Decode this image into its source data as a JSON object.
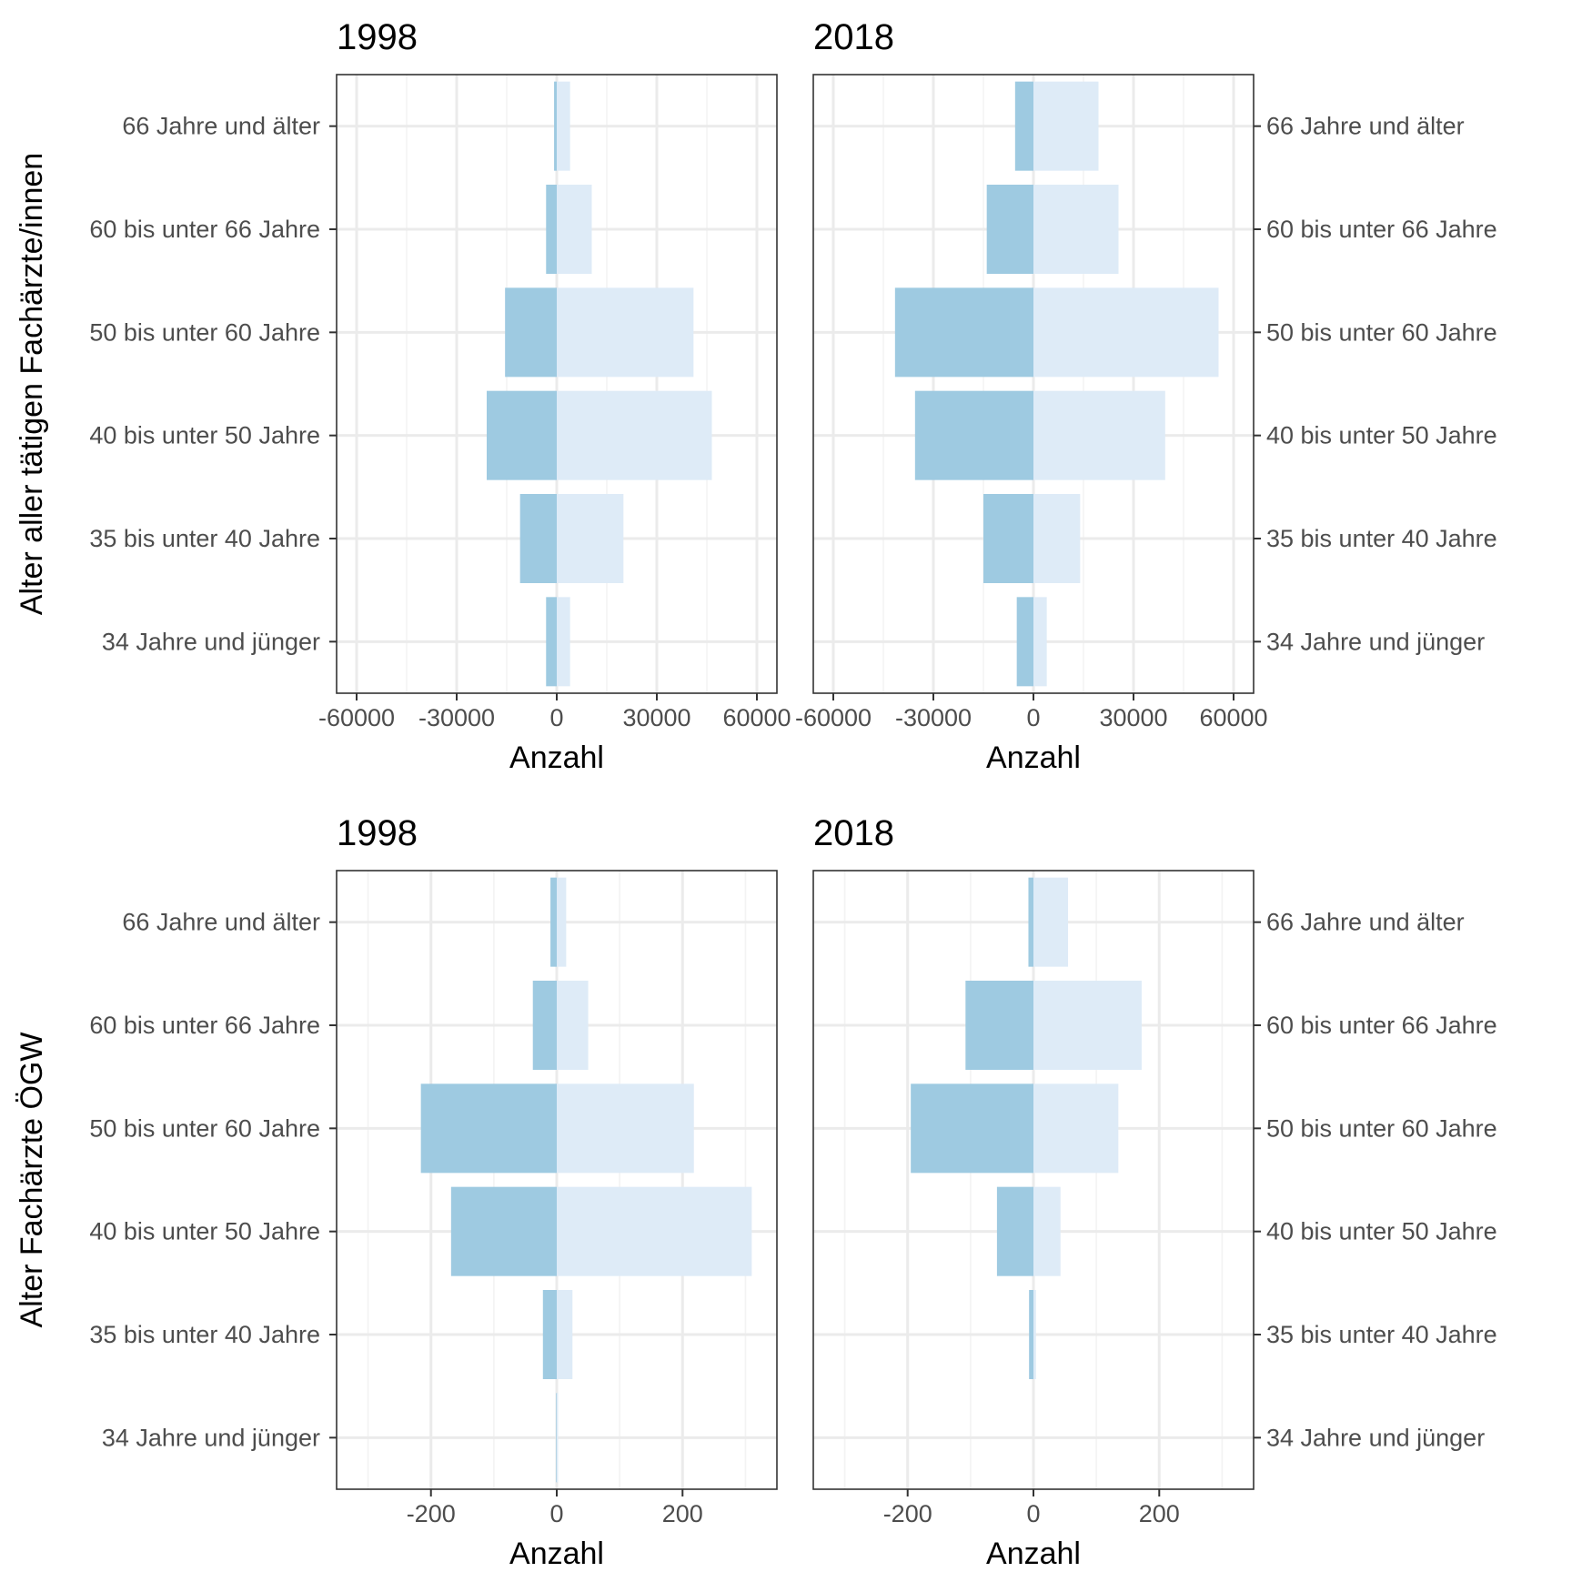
{
  "colors": {
    "female": "#9ecae1",
    "male": "#deebf7"
  },
  "chart_data": [
    {
      "type": "bar",
      "orientation": "horizontal",
      "title": "1998",
      "xlabel": "Anzahl",
      "ylabel": "Alter aller tätigen Fachärzte/innen",
      "xlim": [
        -66000,
        66000
      ],
      "xticks": [
        -60000,
        -30000,
        0,
        30000,
        60000
      ],
      "xtick_labels": [
        "-60000",
        "-30000",
        "0",
        "30000",
        "60000"
      ],
      "categories": [
        "34 Jahre und jünger",
        "35 bis unter 40 Jahre",
        "40 bis unter 50 Jahre",
        "50 bis unter 60 Jahre",
        "60 bis unter 66 Jahre",
        "66 Jahre und älter"
      ],
      "series": [
        {
          "values": [
            -3200,
            -11000,
            -21000,
            -15500,
            -3200,
            -800
          ]
        },
        {
          "values": [
            4000,
            20000,
            46500,
            41000,
            10500,
            4000
          ]
        }
      ],
      "y_axis_side": "left",
      "grid": true
    },
    {
      "type": "bar",
      "orientation": "horizontal",
      "title": "2018",
      "xlabel": "Anzahl",
      "xlim": [
        -66000,
        66000
      ],
      "xticks": [
        -60000,
        -30000,
        0,
        30000,
        60000
      ],
      "xtick_labels": [
        "-60000",
        "-30000",
        "0",
        "30000",
        "60000"
      ],
      "categories": [
        "34 Jahre und jünger",
        "35 bis unter 40 Jahre",
        "40 bis unter 50 Jahre",
        "50 bis unter 60 Jahre",
        "60 bis unter 66 Jahre",
        "66 Jahre und älter"
      ],
      "series": [
        {
          "values": [
            -5000,
            -15000,
            -35500,
            -41500,
            -14000,
            -5500
          ]
        },
        {
          "values": [
            4000,
            14000,
            39500,
            55500,
            25500,
            19500
          ]
        }
      ],
      "y_axis_side": "right",
      "grid": true
    },
    {
      "type": "bar",
      "orientation": "horizontal",
      "title": "1998",
      "xlabel": "Anzahl",
      "ylabel": "Alter Fachärzte ÖGW",
      "xlim": [
        -350,
        350
      ],
      "xticks": [
        -200,
        0,
        200
      ],
      "xtick_labels": [
        "-200",
        "0",
        "200"
      ],
      "categories": [
        "34 Jahre und jünger",
        "35 bis unter 40 Jahre",
        "40 bis unter 50 Jahre",
        "50 bis unter 60 Jahre",
        "60 bis unter 66 Jahre",
        "66 Jahre und älter"
      ],
      "series": [
        {
          "values": [
            -1,
            -22,
            -168,
            -216,
            -38,
            -10
          ]
        },
        {
          "values": [
            1,
            25,
            310,
            218,
            50,
            15
          ]
        }
      ],
      "y_axis_side": "left",
      "grid": true
    },
    {
      "type": "bar",
      "orientation": "horizontal",
      "title": "2018",
      "xlabel": "Anzahl",
      "xlim": [
        -350,
        350
      ],
      "xticks": [
        -200,
        0,
        200
      ],
      "xtick_labels": [
        "-200",
        "0",
        "200"
      ],
      "categories": [
        "34 Jahre und jünger",
        "35 bis unter 40 Jahre",
        "40 bis unter 50 Jahre",
        "50 bis unter 60 Jahre",
        "60 bis unter 66 Jahre",
        "66 Jahre und älter"
      ],
      "series": [
        {
          "values": [
            0,
            -7,
            -58,
            -195,
            -108,
            -8
          ]
        },
        {
          "values": [
            0,
            4,
            43,
            135,
            172,
            55
          ]
        }
      ],
      "y_axis_side": "right",
      "grid": true
    }
  ]
}
